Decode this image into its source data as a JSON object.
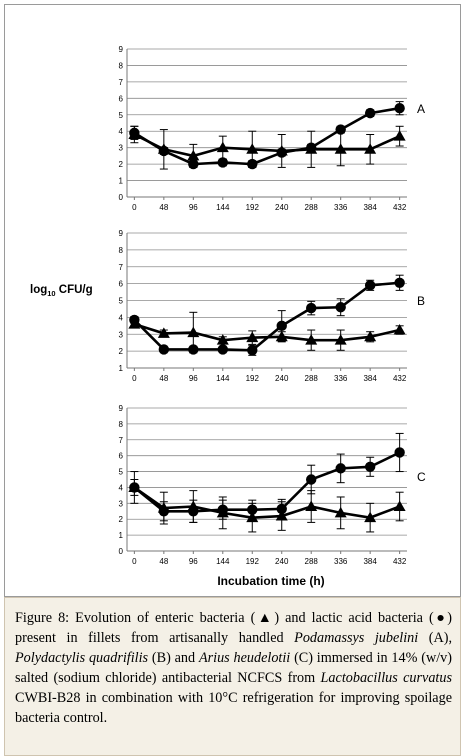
{
  "y_axis_label": "log10 CFU/g",
  "y_axis_label_base": "log",
  "y_axis_label_sub": "10",
  "y_axis_label_rest": " CFU/g",
  "x_axis_label": "Incubation time (h)",
  "chart_data": [
    {
      "type": "line",
      "panel_label": "A",
      "x": [
        0,
        48,
        96,
        144,
        192,
        240,
        288,
        336,
        384,
        432
      ],
      "ylim": [
        0,
        9
      ],
      "yticks": [
        0,
        1,
        2,
        3,
        4,
        5,
        6,
        7,
        8,
        9
      ],
      "grid": true,
      "series": [
        {
          "marker": "triangle",
          "values": [
            3.8,
            2.9,
            2.5,
            3.0,
            2.9,
            2.8,
            2.9,
            2.9,
            2.9,
            3.7
          ],
          "errors": [
            0.5,
            1.2,
            0.7,
            0.7,
            1.1,
            1.0,
            1.1,
            1.0,
            0.9,
            0.6
          ]
        },
        {
          "marker": "circle",
          "values": [
            3.9,
            2.8,
            2.0,
            2.1,
            2.0,
            2.7,
            3.0,
            4.1,
            5.1,
            5.4
          ],
          "errors": [
            0.4,
            0.2,
            0.2,
            0.2,
            0.2,
            0.2,
            0.2,
            0.2,
            0.2,
            0.4
          ]
        }
      ]
    },
    {
      "type": "line",
      "panel_label": "B",
      "x": [
        0,
        48,
        96,
        144,
        192,
        240,
        288,
        336,
        384,
        432
      ],
      "ylim": [
        1,
        9
      ],
      "yticks": [
        1,
        2,
        3,
        4,
        5,
        6,
        7,
        8,
        9
      ],
      "grid": true,
      "series": [
        {
          "marker": "triangle",
          "values": [
            3.6,
            3.05,
            3.1,
            2.65,
            2.8,
            2.85,
            2.65,
            2.65,
            2.85,
            3.25
          ],
          "errors": [
            0.2,
            0.2,
            1.2,
            0.2,
            0.4,
            0.3,
            0.6,
            0.6,
            0.3,
            0.25
          ]
        },
        {
          "marker": "circle",
          "values": [
            3.85,
            2.1,
            2.1,
            2.1,
            2.05,
            3.5,
            4.55,
            4.6,
            5.9,
            6.05
          ],
          "errors": [
            0.2,
            0.15,
            0.15,
            0.15,
            0.3,
            0.9,
            0.4,
            0.5,
            0.3,
            0.45
          ]
        }
      ]
    },
    {
      "type": "line",
      "panel_label": "C",
      "x": [
        0,
        48,
        96,
        144,
        192,
        240,
        288,
        336,
        384,
        432
      ],
      "ylim": [
        0,
        9
      ],
      "yticks": [
        0,
        1,
        2,
        3,
        4,
        5,
        6,
        7,
        8,
        9
      ],
      "grid": true,
      "series": [
        {
          "marker": "triangle",
          "values": [
            4.0,
            2.7,
            2.8,
            2.4,
            2.1,
            2.2,
            2.8,
            2.4,
            2.1,
            2.8
          ],
          "errors": [
            1.0,
            1.0,
            1.0,
            1.0,
            0.9,
            0.9,
            1.0,
            1.0,
            0.9,
            0.9
          ]
        },
        {
          "marker": "circle",
          "values": [
            4.0,
            2.5,
            2.5,
            2.6,
            2.6,
            2.65,
            4.5,
            5.2,
            5.3,
            6.2
          ],
          "errors": [
            0.5,
            0.6,
            0.7,
            0.6,
            0.6,
            0.6,
            0.9,
            0.9,
            0.6,
            1.2
          ]
        }
      ]
    }
  ],
  "caption": {
    "label": "Figure 8:",
    "text_1": " Evolution of enteric bacteria (▲) and lactic acid bacteria (●) present in fillets from artisanally handled ",
    "species_1": "Podamassys jubelini",
    "text_2": " (A), ",
    "species_2": "Polydactylis quadrifilis",
    "text_3": " (B) and ",
    "species_3": "Arius heudelotii",
    "text_4": " (C) immersed in 14% (w/v) salted (sodium chloride) antibacterial NCFCS from ",
    "species_4": "Lactobacillus curvatus",
    "text_5": " CWBI-B28 in combination with 10°C refrigeration for improving spoilage bacteria control."
  }
}
